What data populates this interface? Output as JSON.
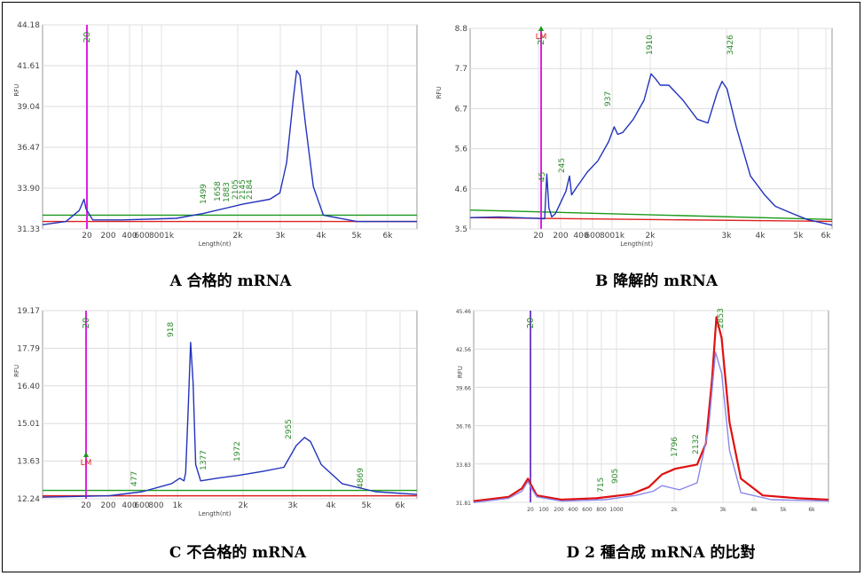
{
  "colors": {
    "trace_blue": "#2233bb",
    "trace_red": "#e01010",
    "trace_violet": "#8888ee",
    "baseline_green": "#1a9a1a",
    "baseline_red": "#dd2222",
    "marker_magenta": "#e020e0",
    "peak_label_green": "#2a8a2a",
    "lm_red": "#dd2222"
  },
  "chart_data": [
    {
      "id": "A",
      "type": "line",
      "caption": "A 合格的 mRNA",
      "ylabel": "RFU",
      "xlabel": "Length(nt)",
      "ylim": [
        31.33,
        44.18
      ],
      "yticks": [
        "31.33",
        "33.90",
        "36.47",
        "39.04",
        "41.61",
        "44.18"
      ],
      "xticks": [
        "20",
        "200",
        "400",
        "600",
        "8001k",
        "2k",
        "3k",
        "4k",
        "5k",
        "6k"
      ],
      "marker_label": "20",
      "peak_labels": [
        "1499",
        "1658",
        "1883",
        "2105",
        "2145",
        "2184"
      ],
      "baselines": [
        {
          "color": "green",
          "y": [
            32.2,
            32.2
          ]
        },
        {
          "color": "red",
          "y": [
            31.8,
            31.8
          ]
        }
      ],
      "series": [
        {
          "color": "blue",
          "points": [
            [
              0,
              31.6
            ],
            [
              35,
              31.8
            ],
            [
              55,
              32.5
            ],
            [
              62,
              33.2
            ],
            [
              65,
              32.6
            ],
            [
              75,
              31.9
            ],
            [
              120,
              31.9
            ],
            [
              200,
              32.0
            ],
            [
              240,
              32.3
            ],
            [
              300,
              32.9
            ],
            [
              340,
              33.2
            ],
            [
              355,
              33.6
            ],
            [
              365,
              35.5
            ],
            [
              375,
              39.5
            ],
            [
              380,
              41.3
            ],
            [
              385,
              41.0
            ],
            [
              393,
              38.0
            ],
            [
              405,
              34.0
            ],
            [
              420,
              32.2
            ],
            [
              470,
              31.8
            ],
            [
              560,
              31.8
            ]
          ]
        }
      ]
    },
    {
      "id": "B",
      "type": "line",
      "caption": "B 降解的 mRNA",
      "ylabel": "RFU",
      "xlabel": "Length(nt)",
      "ylim": [
        3.5,
        8.8
      ],
      "yticks": [
        "3.5",
        "4.6",
        "5.6",
        "6.7",
        "7.7",
        "8.8"
      ],
      "xticks": [
        "20",
        "200",
        "400",
        "600",
        "8001k",
        "2k",
        "3k",
        "4k",
        "5k",
        "6k"
      ],
      "marker_label": "2\\",
      "lm_label": "LM",
      "peak_labels": [
        "45",
        "245",
        "937",
        "1910",
        "3426"
      ],
      "baselines": [
        {
          "color": "green",
          "y": [
            4.0,
            3.75
          ]
        },
        {
          "color": "red",
          "y": [
            3.8,
            3.7
          ]
        }
      ],
      "series": [
        {
          "color": "blue",
          "points": [
            [
              0,
              3.8
            ],
            [
              40,
              3.82
            ],
            [
              95,
              3.78
            ],
            [
              105,
              3.77
            ],
            [
              108,
              4.95
            ],
            [
              111,
              4.05
            ],
            [
              115,
              3.82
            ],
            [
              120,
              3.9
            ],
            [
              130,
              4.3
            ],
            [
              135,
              4.5
            ],
            [
              140,
              4.9
            ],
            [
              143,
              4.4
            ],
            [
              150,
              4.6
            ],
            [
              165,
              5.0
            ],
            [
              180,
              5.3
            ],
            [
              195,
              5.8
            ],
            [
              203,
              6.2
            ],
            [
              208,
              6.0
            ],
            [
              215,
              6.05
            ],
            [
              230,
              6.4
            ],
            [
              245,
              6.9
            ],
            [
              255,
              7.6
            ],
            [
              262,
              7.45
            ],
            [
              268,
              7.3
            ],
            [
              280,
              7.3
            ],
            [
              300,
              6.9
            ],
            [
              320,
              6.4
            ],
            [
              335,
              6.3
            ],
            [
              348,
              7.1
            ],
            [
              355,
              7.4
            ],
            [
              362,
              7.2
            ],
            [
              375,
              6.2
            ],
            [
              395,
              4.9
            ],
            [
              415,
              4.4
            ],
            [
              430,
              4.1
            ],
            [
              455,
              3.9
            ],
            [
              475,
              3.75
            ],
            [
              510,
              3.6
            ]
          ]
        }
      ]
    },
    {
      "id": "C",
      "type": "line",
      "caption": "C 不合格的 mRNA",
      "ylabel": "RFU",
      "xlabel": "Length(nt)",
      "ylim": [
        12.24,
        19.17
      ],
      "yticks": [
        "12.24",
        "13.63",
        "15.01",
        "16.40",
        "17.79",
        "19.17"
      ],
      "xticks": [
        "20",
        "200",
        "400",
        "600",
        "800",
        "1k",
        "2k",
        "3k",
        "4k",
        "5k",
        "6k"
      ],
      "marker_label": "20",
      "lm_label": "LM",
      "peak_labels": [
        "477",
        "918",
        "1377",
        "1972",
        "2955",
        "4869"
      ],
      "baselines": [
        {
          "color": "green",
          "y": [
            12.55,
            12.55
          ]
        },
        {
          "color": "red",
          "y": [
            12.35,
            12.35
          ]
        }
      ],
      "series": [
        {
          "color": "blue",
          "points": [
            [
              0,
              12.3
            ],
            [
              80,
              12.35
            ],
            [
              120,
              12.5
            ],
            [
              155,
              12.8
            ],
            [
              165,
              13.0
            ],
            [
              170,
              12.9
            ],
            [
              172,
              13.2
            ],
            [
              175,
              15.5
            ],
            [
              178,
              18.0
            ],
            [
              181,
              16.5
            ],
            [
              184,
              13.5
            ],
            [
              190,
              12.9
            ],
            [
              210,
              13.0
            ],
            [
              235,
              13.1
            ],
            [
              265,
              13.25
            ],
            [
              290,
              13.4
            ],
            [
              305,
              14.2
            ],
            [
              315,
              14.5
            ],
            [
              322,
              14.35
            ],
            [
              335,
              13.5
            ],
            [
              360,
              12.8
            ],
            [
              400,
              12.5
            ],
            [
              450,
              12.4
            ]
          ]
        }
      ]
    },
    {
      "id": "D",
      "type": "line",
      "caption": "D 2 種合成 mRNA 的比對",
      "ylabel": "RFU",
      "xlabel": "",
      "yticks": [
        "31.81",
        "33.83",
        "36.76",
        "39.66",
        "42.56",
        "45.46"
      ],
      "xticks": [
        "20",
        "100",
        "200",
        "400",
        "600",
        "800",
        "1000",
        "2k",
        "3k",
        "4k",
        "5k",
        "6k"
      ],
      "marker_label": "20",
      "peak_labels": [
        "715",
        "905",
        "1796",
        "2132",
        "2853"
      ],
      "series": [
        {
          "color": "red",
          "points": [
            [
              0,
              31.9
            ],
            [
              40,
              32.2
            ],
            [
              55,
              32.8
            ],
            [
              62,
              33.5
            ],
            [
              66,
              33.0
            ],
            [
              72,
              32.3
            ],
            [
              100,
              32.0
            ],
            [
              140,
              32.1
            ],
            [
              180,
              32.4
            ],
            [
              200,
              32.9
            ],
            [
              215,
              33.8
            ],
            [
              230,
              34.2
            ],
            [
              255,
              34.5
            ],
            [
              265,
              36.0
            ],
            [
              272,
              40.5
            ],
            [
              277,
              45.0
            ],
            [
              283,
              43.5
            ],
            [
              292,
              37.5
            ],
            [
              305,
              33.5
            ],
            [
              330,
              32.3
            ],
            [
              370,
              32.1
            ],
            [
              405,
              32.0
            ]
          ]
        },
        {
          "color": "violet",
          "points": [
            [
              0,
              31.8
            ],
            [
              40,
              32.1
            ],
            [
              55,
              32.6
            ],
            [
              62,
              33.3
            ],
            [
              66,
              32.8
            ],
            [
              72,
              32.2
            ],
            [
              100,
              31.9
            ],
            [
              150,
              32.0
            ],
            [
              185,
              32.3
            ],
            [
              205,
              32.6
            ],
            [
              215,
              33.0
            ],
            [
              235,
              32.7
            ],
            [
              255,
              33.2
            ],
            [
              268,
              37.0
            ],
            [
              276,
              42.5
            ],
            [
              283,
              41.0
            ],
            [
              292,
              35.5
            ],
            [
              305,
              32.5
            ],
            [
              340,
              32.0
            ],
            [
              405,
              31.9
            ]
          ]
        }
      ]
    }
  ]
}
